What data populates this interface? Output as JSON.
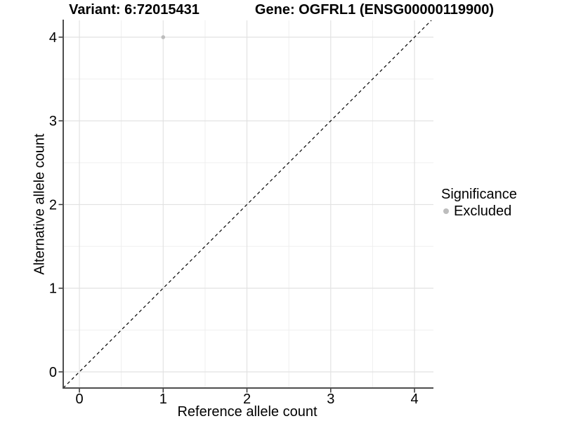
{
  "colors": {
    "background": "#ffffff",
    "grid_major": "#e2e2e2",
    "grid_minor": "#efefef",
    "axis_line": "#4d4d4d",
    "tick_mark": "#333333",
    "identity_line": "#000000",
    "text": "#000000",
    "excluded": "#bdbdbd"
  },
  "chart_data": {
    "type": "scatter",
    "titles": {
      "left": "Variant: 6:72015431",
      "right": "Gene: OGFRL1 (ENSG00000119900)"
    },
    "xlabel": "Reference allele count",
    "ylabel": "Alternative allele count",
    "xlim": [
      -0.193,
      4.226
    ],
    "ylim": [
      -0.193,
      4.201
    ],
    "x_ticks": [
      0,
      1,
      2,
      3,
      4
    ],
    "y_ticks": [
      0,
      1,
      2,
      3,
      4
    ],
    "minor_gridlines_x": [
      0.5,
      1.5,
      2.5,
      3.5
    ],
    "minor_gridlines_y": [
      0.5,
      1.5,
      2.5,
      3.5
    ],
    "grid": true,
    "reference_line": {
      "type": "identity",
      "x1": -0.193,
      "y1": -0.193,
      "x2": 4.201,
      "y2": 4.201,
      "style": "dashed"
    },
    "series": [
      {
        "name": "Excluded",
        "color": "#bdbdbd",
        "points": [
          {
            "x": 1,
            "y": 4
          }
        ]
      }
    ],
    "legend": {
      "title": "Significance",
      "position": "right",
      "entries": [
        {
          "label": "Excluded",
          "color": "#bdbdbd"
        }
      ]
    }
  }
}
